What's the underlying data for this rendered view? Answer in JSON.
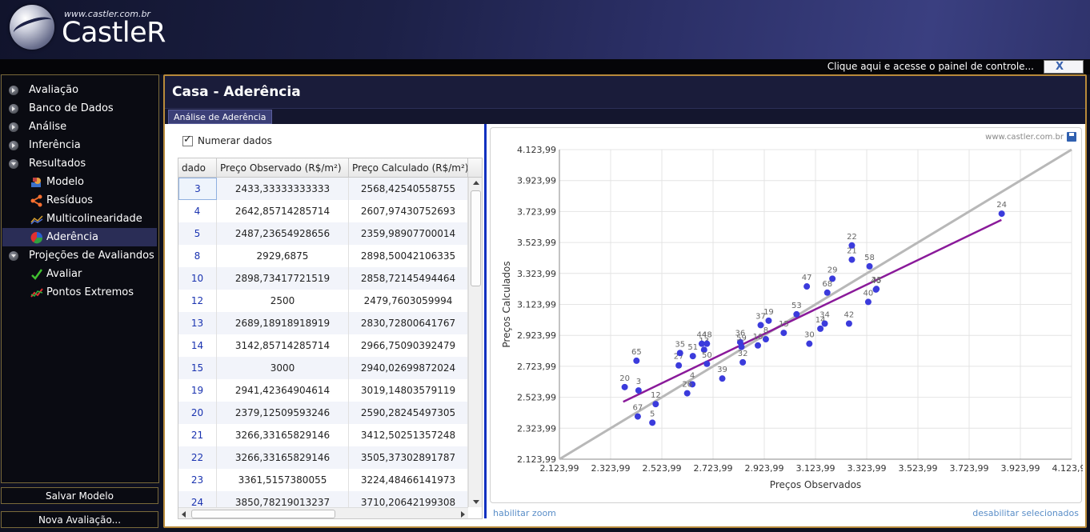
{
  "header": {
    "logo_url": "www.castler.com.br",
    "logo_name": "CastleR",
    "control_link": "Clique aqui e acesse o painel de controle...",
    "control_icon": "X"
  },
  "sidebar": {
    "items": [
      {
        "label": "Avaliação",
        "icon": "arrow-right-icon"
      },
      {
        "label": "Banco de Dados",
        "icon": "arrow-right-icon"
      },
      {
        "label": "Análise",
        "icon": "arrow-right-icon"
      },
      {
        "label": "Inferência",
        "icon": "arrow-right-icon"
      },
      {
        "label": "Resultados",
        "icon": "arrow-down-icon"
      },
      {
        "label": "Modelo",
        "icon": "model-icon"
      },
      {
        "label": "Resíduos",
        "icon": "residuals-icon"
      },
      {
        "label": "Multicolinearidade",
        "icon": "multicollinearity-icon"
      },
      {
        "label": "Aderência",
        "icon": "adherence-icon"
      },
      {
        "label": "Projeções de Avaliandos",
        "icon": "arrow-down-icon"
      },
      {
        "label": "Avaliar",
        "icon": "checkmark-icon"
      },
      {
        "label": "Pontos Extremos",
        "icon": "trend-icon"
      }
    ],
    "save_button": "Salvar Modelo",
    "new_button": "Nova Avaliação..."
  },
  "main": {
    "title": "Casa - Aderência",
    "tab": "Análise de Aderência",
    "checkbox_label": "Numerar dados",
    "table": {
      "headers": [
        "dado",
        "Preço Observado (R$/m²)",
        "Preço Calculado (R$/m²)"
      ],
      "rows": [
        [
          "3",
          "2433,33333333333",
          "2568,42540558755"
        ],
        [
          "4",
          "2642,85714285714",
          "2607,97430752693"
        ],
        [
          "5",
          "2487,23654928656",
          "2359,98907700014"
        ],
        [
          "8",
          "2929,6875",
          "2898,50042106335"
        ],
        [
          "10",
          "2898,73417721519",
          "2858,72145494464"
        ],
        [
          "12",
          "2500",
          "2479,7603059994"
        ],
        [
          "13",
          "2689,18918918919",
          "2830,72800641767"
        ],
        [
          "14",
          "3142,85714285714",
          "2966,75090392479"
        ],
        [
          "15",
          "3000",
          "2940,02699872024"
        ],
        [
          "19",
          "2941,42364904614",
          "3019,14803579119"
        ],
        [
          "20",
          "2379,12509593246",
          "2590,28245497305"
        ],
        [
          "21",
          "3266,33165829146",
          "3412,50251357248"
        ],
        [
          "22",
          "3266,33165829146",
          "3505,37302891787"
        ],
        [
          "23",
          "3361,5157380055",
          "3224,48466141973"
        ],
        [
          "24",
          "3850,78219013237",
          "3710,20642199308"
        ]
      ]
    },
    "credit": "www.castler.com.br",
    "zoom_link": "habilitar zoom",
    "deselect_link": "desabilitar selecionados"
  },
  "chart_data": {
    "type": "scatter",
    "xlabel": "Preços Observados",
    "ylabel": "Preços Calculados",
    "xlim": [
      2123.99,
      4123.99
    ],
    "ylim": [
      2123.99,
      4123.99
    ],
    "x_ticks": [
      "2.123,99",
      "2.323,99",
      "2.523,99",
      "2.723,99",
      "2.923,99",
      "3.123,99",
      "3.323,99",
      "3.523,99",
      "3.723,99",
      "3.923,99",
      "4.123,99"
    ],
    "y_ticks": [
      "2.123,99",
      "2.323,99",
      "2.523,99",
      "2.723,99",
      "2.923,99",
      "3.123,99",
      "3.323,99",
      "3.523,99",
      "3.723,99",
      "3.923,99",
      "4.123,99"
    ],
    "grid": true,
    "point_color": "#3b3bdc",
    "identity_line_color": "#b8b8b8",
    "fit_line_color": "#8a1a9a",
    "fit_line": [
      [
        2373,
        2495
      ],
      [
        3850,
        3670
      ]
    ],
    "points": [
      {
        "label": "3",
        "x": 2433,
        "y": 2568
      },
      {
        "label": "4",
        "x": 2643,
        "y": 2608
      },
      {
        "label": "5",
        "x": 2487,
        "y": 2360
      },
      {
        "label": "8",
        "x": 2930,
        "y": 2899
      },
      {
        "label": "10",
        "x": 2899,
        "y": 2859
      },
      {
        "label": "12",
        "x": 2500,
        "y": 2480
      },
      {
        "label": "13",
        "x": 2689,
        "y": 2831
      },
      {
        "label": "14",
        "x": 3143,
        "y": 2967
      },
      {
        "label": "15",
        "x": 3000,
        "y": 2940
      },
      {
        "label": "19",
        "x": 2941,
        "y": 3019
      },
      {
        "label": "20",
        "x": 2379,
        "y": 2590
      },
      {
        "label": "21",
        "x": 3266,
        "y": 3413
      },
      {
        "label": "22",
        "x": 3266,
        "y": 3505
      },
      {
        "label": "23",
        "x": 3362,
        "y": 3224
      },
      {
        "label": "24",
        "x": 3851,
        "y": 3710
      },
      {
        "label": "26",
        "x": 2623,
        "y": 2550
      },
      {
        "label": "27",
        "x": 2590,
        "y": 2730
      },
      {
        "label": "29",
        "x": 3190,
        "y": 3290
      },
      {
        "label": "30",
        "x": 3100,
        "y": 2870
      },
      {
        "label": "32",
        "x": 2840,
        "y": 2750
      },
      {
        "label": "34",
        "x": 3160,
        "y": 3000
      },
      {
        "label": "35",
        "x": 2595,
        "y": 2810
      },
      {
        "label": "36",
        "x": 2830,
        "y": 2880
      },
      {
        "label": "37",
        "x": 2910,
        "y": 2990
      },
      {
        "label": "39",
        "x": 2760,
        "y": 2645
      },
      {
        "label": "40",
        "x": 3330,
        "y": 3140
      },
      {
        "label": "42",
        "x": 3255,
        "y": 3000
      },
      {
        "label": "44",
        "x": 2680,
        "y": 2870
      },
      {
        "label": "46",
        "x": 3360,
        "y": 3220
      },
      {
        "label": "47",
        "x": 3090,
        "y": 3240
      },
      {
        "label": "48",
        "x": 2700,
        "y": 2870
      },
      {
        "label": "50",
        "x": 2700,
        "y": 2740
      },
      {
        "label": "51",
        "x": 2645,
        "y": 2790
      },
      {
        "label": "53",
        "x": 3050,
        "y": 3060
      },
      {
        "label": "58",
        "x": 3335,
        "y": 3370
      },
      {
        "label": "59",
        "x": 2835,
        "y": 2850
      },
      {
        "label": "65",
        "x": 2425,
        "y": 2760
      },
      {
        "label": "67",
        "x": 2430,
        "y": 2400
      },
      {
        "label": "68",
        "x": 3170,
        "y": 3200
      }
    ]
  }
}
